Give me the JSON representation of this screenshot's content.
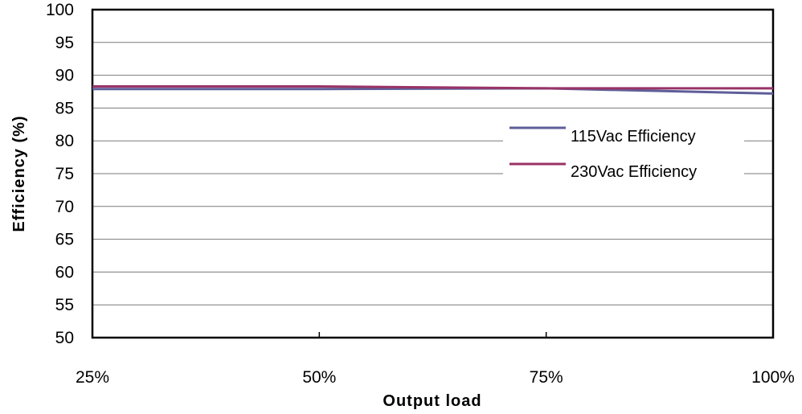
{
  "chart_data": {
    "type": "line",
    "categories": [
      "25%",
      "50%",
      "75%",
      "100%"
    ],
    "x": [
      25,
      50,
      75,
      100
    ],
    "xlabel": "Output load",
    "ylabel": "Efficiency (%)",
    "ylim": [
      50,
      100
    ],
    "yticks": [
      "100",
      "95",
      "90",
      "85",
      "80",
      "75",
      "70",
      "65",
      "60",
      "55",
      "50"
    ],
    "grid": true,
    "legend_position": "right",
    "series": [
      {
        "name": "115Vac Efficiency",
        "color": "#5e5e9a",
        "x": [
          25,
          50,
          75,
          100
        ],
        "values": [
          87.9,
          87.9,
          88.0,
          87.2
        ]
      },
      {
        "name": "230Vac Efficiency",
        "color": "#993366",
        "x": [
          25,
          50,
          75,
          100
        ],
        "values": [
          88.3,
          88.3,
          88.0,
          88.0
        ]
      }
    ]
  }
}
